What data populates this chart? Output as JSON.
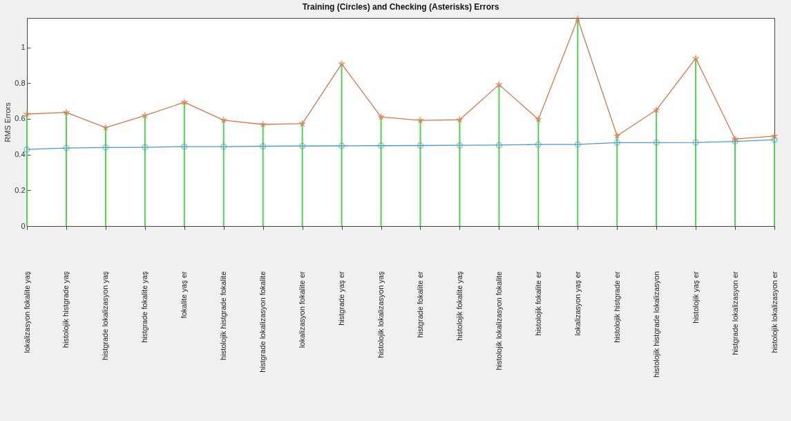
{
  "chart_data": {
    "type": "line",
    "title": "Training (Circles) and Checking (Asterisks) Errors",
    "ylabel": "RMS Errors",
    "categories": [
      "lokalizasyon fokalite yaş",
      "histolojik histgrade yaş",
      "histgrade lokalizasyon yaş",
      "histgrade fokalite yaş",
      "fokalite yaş er",
      "histolojik histgrade fokalite",
      "histgrade lokalizasyon fokalite",
      "lokalizasyon fokalite er",
      "histgrade yaş er",
      "histolojik lokalizasyon yaş",
      "histgrade fokalite er",
      "histolojik fokalite yaş",
      "histolojik lokalizasyon fokalite",
      "histolojik fokalite er",
      "lokalizasyon yaş er",
      "histolojik histgrade er",
      "histolojik histgrade lokalizasyon",
      "histolojik yaş er",
      "histgrade lokalizasyon er",
      "histolojik lokalizasyon er"
    ],
    "series": [
      {
        "type": "bar",
        "color": "#4cd44c",
        "values": [
          0.627,
          0.636,
          0.551,
          0.619,
          0.693,
          0.593,
          0.569,
          0.573,
          0.908,
          0.611,
          0.592,
          0.595,
          0.792,
          0.597,
          1.16,
          0.505,
          0.65,
          0.939,
          0.487,
          0.504
        ]
      },
      {
        "color": "#4a9bd0",
        "marker": "circle",
        "values": [
          0.429,
          0.437,
          0.44,
          0.441,
          0.445,
          0.445,
          0.447,
          0.448,
          0.449,
          0.45,
          0.451,
          0.452,
          0.453,
          0.457,
          0.457,
          0.467,
          0.467,
          0.468,
          0.474,
          0.483
        ]
      },
      {
        "color": "#d9764a",
        "marker": "star",
        "values": [
          0.627,
          0.636,
          0.551,
          0.619,
          0.693,
          0.593,
          0.569,
          0.573,
          0.908,
          0.611,
          0.592,
          0.595,
          0.792,
          0.597,
          1.16,
          0.505,
          0.65,
          0.939,
          0.487,
          0.504
        ]
      }
    ],
    "ylim": [
      0,
      1.165
    ],
    "yticks": [
      0,
      0.2,
      0.4,
      0.6,
      0.8,
      1
    ],
    "grid": false
  }
}
